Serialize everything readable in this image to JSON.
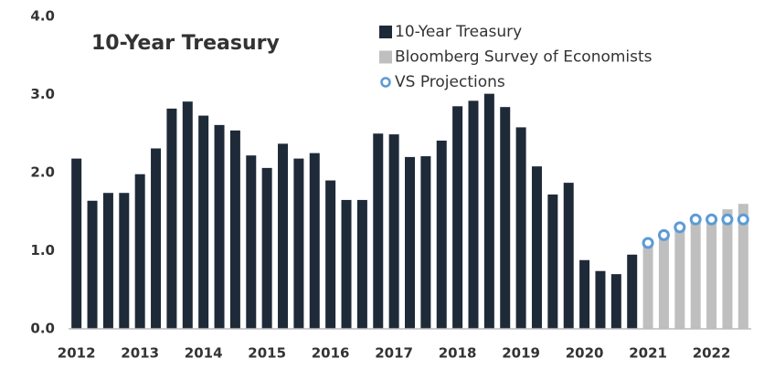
{
  "chart_data": {
    "type": "bar",
    "title": "10-Year Treasury",
    "categories": [
      "2012",
      null,
      null,
      null,
      "2013",
      null,
      null,
      null,
      "2014",
      null,
      null,
      null,
      "2015",
      null,
      null,
      null,
      "2016",
      null,
      null,
      null,
      "2017",
      null,
      null,
      null,
      "2018",
      null,
      null,
      null,
      "2019",
      null,
      null,
      null,
      "2020",
      null,
      null,
      null,
      "2021",
      null,
      null,
      null,
      "2022",
      null,
      null
    ],
    "series": [
      {
        "name": "10-Year Treasury",
        "color": "#1f2a38",
        "marker": "bar",
        "values": [
          2.18,
          1.64,
          1.74,
          1.74,
          1.98,
          2.31,
          2.82,
          2.91,
          2.73,
          2.61,
          2.54,
          2.22,
          2.06,
          2.37,
          2.18,
          2.25,
          1.9,
          1.65,
          1.65,
          2.5,
          2.49,
          2.2,
          2.21,
          2.41,
          2.85,
          2.92,
          3.01,
          2.84,
          2.58,
          2.08,
          1.72,
          1.87,
          0.88,
          0.74,
          0.7,
          0.95,
          null,
          null,
          null,
          null,
          null,
          null,
          null
        ]
      },
      {
        "name": "Bloomberg Survey of Economists",
        "color": "#bfbfbf",
        "marker": "bar",
        "values": [
          null,
          null,
          null,
          null,
          null,
          null,
          null,
          null,
          null,
          null,
          null,
          null,
          null,
          null,
          null,
          null,
          null,
          null,
          null,
          null,
          null,
          null,
          null,
          null,
          null,
          null,
          null,
          null,
          null,
          null,
          null,
          null,
          null,
          null,
          null,
          null,
          1.1,
          1.2,
          1.3,
          1.4,
          1.45,
          1.53,
          1.6
        ]
      },
      {
        "name": "VS Projections",
        "color": "#5b9bd5",
        "marker": "circle",
        "values": [
          null,
          null,
          null,
          null,
          null,
          null,
          null,
          null,
          null,
          null,
          null,
          null,
          null,
          null,
          null,
          null,
          null,
          null,
          null,
          null,
          null,
          null,
          null,
          null,
          null,
          null,
          null,
          null,
          null,
          null,
          null,
          null,
          null,
          null,
          null,
          null,
          1.1,
          1.2,
          1.3,
          1.4,
          1.4,
          1.4,
          1.4
        ]
      }
    ],
    "ylim": [
      0,
      4
    ],
    "yticks": [
      {
        "value": 0,
        "label": "0.0"
      },
      {
        "value": 1,
        "label": "1.0"
      },
      {
        "value": 2,
        "label": "2.0"
      },
      {
        "value": 3,
        "label": "3.0"
      },
      {
        "value": 4,
        "label": "4.0"
      }
    ],
    "grid": false,
    "legend": "top"
  }
}
